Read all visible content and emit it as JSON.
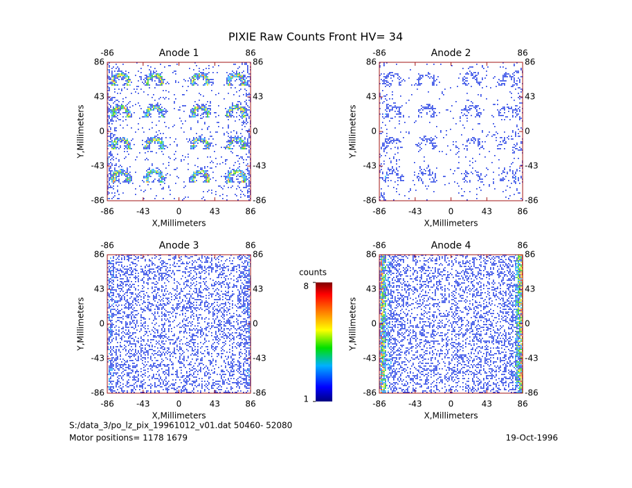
{
  "title": "PIXIE Raw Counts Front HV= 34",
  "chart_data": [
    {
      "type": "heatmap",
      "title": "Anode 1",
      "xlabel": "X,Millimeters",
      "ylabel": "Y,Millimeters",
      "xlim": [
        -86,
        86
      ],
      "ylim": [
        -86,
        86
      ],
      "xticks": [
        -86,
        -43,
        0,
        43,
        86
      ],
      "yticks": [
        -86,
        -43,
        0,
        43,
        86
      ]
    },
    {
      "type": "heatmap",
      "title": "Anode 2",
      "xlabel": "X,Millimeters",
      "ylabel": "Y,Millimeters",
      "xlim": [
        -86,
        86
      ],
      "ylim": [
        -86,
        86
      ],
      "xticks": [
        -86,
        -43,
        0,
        43,
        86
      ],
      "yticks": [
        -86,
        -43,
        0,
        43,
        86
      ]
    },
    {
      "type": "heatmap",
      "title": "Anode 3",
      "xlabel": "X,Millimeters",
      "ylabel": "Y,Millimeters",
      "xlim": [
        -86,
        86
      ],
      "ylim": [
        -86,
        86
      ],
      "xticks": [
        -86,
        -43,
        0,
        43,
        86
      ],
      "yticks": [
        -86,
        -43,
        0,
        43,
        86
      ]
    },
    {
      "type": "heatmap",
      "title": "Anode 4",
      "xlabel": "X,Millimeters",
      "ylabel": "Y,Millimeters",
      "xlim": [
        -86,
        86
      ],
      "ylim": [
        -86,
        86
      ],
      "xticks": [
        -86,
        -43,
        0,
        43,
        86
      ],
      "yticks": [
        -86,
        -43,
        0,
        43,
        86
      ]
    }
  ],
  "colorbar": {
    "label": "counts",
    "lim": [
      1,
      8
    ],
    "ticks": [
      1,
      8
    ]
  },
  "footer": {
    "file": "S:/data_3/po_lz_pix_19961012_v01.dat   50460- 52080",
    "motor": "Motor positions= 1178 1679",
    "date": "19-Oct-1996"
  }
}
